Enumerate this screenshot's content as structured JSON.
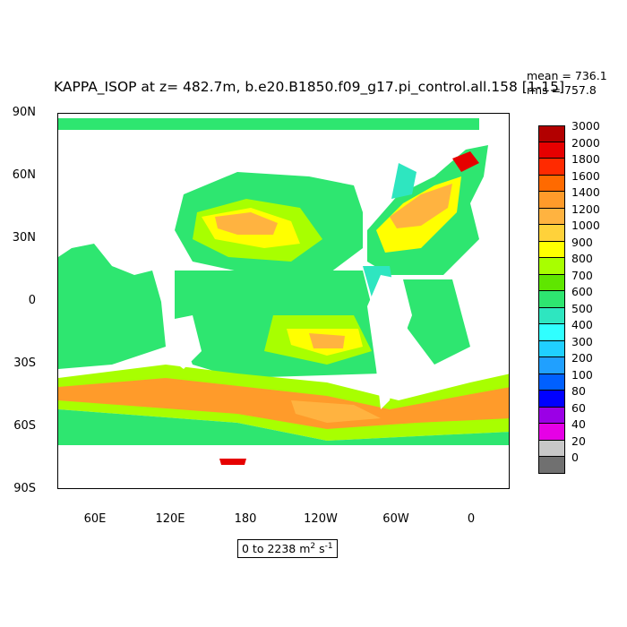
{
  "title": "KAPPA_ISOP at z= 482.7m, b.e20.B1850.f09_g17.pi_control.all.158 [1-15]",
  "stats": {
    "mean": "mean = 736.1",
    "rms": "rms = 757.8"
  },
  "range_text": {
    "prefix": "0 to 2238 m",
    "exp1": "2",
    "mid": " s",
    "exp2": "-1"
  },
  "lat_labels": [
    "90N",
    "60N",
    "30N",
    "0",
    "30S",
    "60S",
    "90S"
  ],
  "lon_labels": [
    "60E",
    "120E",
    "180",
    "120W",
    "60W",
    "0"
  ],
  "colorbar": {
    "labels": [
      "3000",
      "2000",
      "1800",
      "1600",
      "1400",
      "1200",
      "1000",
      "900",
      "800",
      "700",
      "600",
      "500",
      "400",
      "300",
      "200",
      "100",
      "80",
      "60",
      "40",
      "20",
      "0"
    ],
    "colors": [
      "#b20000",
      "#e60000",
      "#ff2a00",
      "#ff6a00",
      "#ff9b2a",
      "#ffb340",
      "#ffd23a",
      "#ffff00",
      "#a8ff00",
      "#5fe600",
      "#2ee670",
      "#2ee6c0",
      "#30ffff",
      "#20d0ff",
      "#20a0ff",
      "#0060ff",
      "#0000ff",
      "#9b00e6",
      "#e600e6",
      "#c8c8c8",
      "#707070"
    ]
  }
}
